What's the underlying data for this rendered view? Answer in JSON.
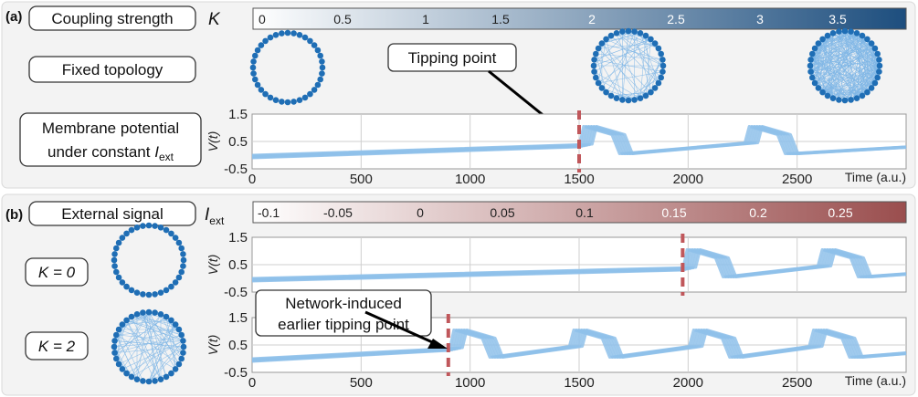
{
  "panel_a": {
    "letter": "(a)",
    "coupling_label": "Coupling strength",
    "coupling_symbol": "K",
    "colorbar_ticks": [
      "0",
      "0.5",
      "1",
      "1.5",
      "2",
      "2.5",
      "3",
      "3.5"
    ],
    "fixed_topology_label": "Fixed topology",
    "tipping_label": "Tipping point",
    "membrane_label_line1": "Membrane potential",
    "membrane_label_line2": "under constant ",
    "membrane_label_sym": "I",
    "membrane_label_sub": "ext",
    "ylabel": "V(t)",
    "xlabel": "Time (a.u.)",
    "y_ticks": [
      "1.5",
      "0.5",
      "-0.5"
    ],
    "x_ticks": [
      "0",
      "500",
      "1000",
      "1500",
      "2000",
      "2500"
    ],
    "tipping_time": 1500
  },
  "panel_b": {
    "letter": "(b)",
    "signal_label": "External signal",
    "signal_symbol": "I",
    "signal_sub": "ext",
    "colorbar_ticks": [
      "-0.1",
      "-0.05",
      "0",
      "0.05",
      "0.1",
      "0.15",
      "0.2",
      "0.25"
    ],
    "k0_label": "K = 0",
    "k2_label": "K = 2",
    "callout_line1": "Network-induced",
    "callout_line2": "earlier tipping point",
    "ylabel": "V(t)",
    "xlabel": "Time (a.u.)",
    "y_ticks": [
      "1.5",
      "0.5",
      "-0.5"
    ],
    "x_ticks": [
      "0",
      "500",
      "1000",
      "1500",
      "2000",
      "2500"
    ],
    "tipping_time_k0": 1975,
    "tipping_time_k2": 900
  },
  "colors": {
    "coupling_colormap_start": "#ffffff",
    "coupling_colormap_end": "#1d4e7e",
    "signal_colormap_start": "#ffffff",
    "signal_colormap_end": "#9a4e4e",
    "tipping_marker": "#c0575b",
    "trace": "#8fc1ea",
    "node": "#1f6eb5"
  }
}
